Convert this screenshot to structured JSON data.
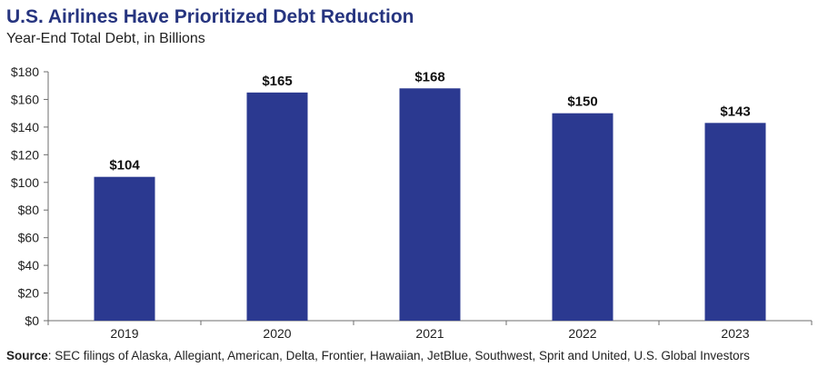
{
  "header": {
    "title": "U.S. Airlines Have Prioritized Debt Reduction",
    "subtitle": "Year-End Total Debt, in Billions"
  },
  "source": {
    "label": "Source",
    "text": ": SEC filings of Alaska, Allegiant, American, Delta, Frontier, Hawaiian, JetBlue, Southwest, Sprit and United, U.S. Global Investors"
  },
  "colors": {
    "bar": "#2b3990",
    "title": "#26347f"
  },
  "chart_data": {
    "type": "bar",
    "title": "U.S. Airlines Have Prioritized Debt Reduction",
    "subtitle": "Year-End Total Debt, in Billions",
    "xlabel": "",
    "ylabel": "",
    "categories": [
      "2019",
      "2020",
      "2021",
      "2022",
      "2023"
    ],
    "values": [
      104,
      165,
      168,
      150,
      143
    ],
    "data_labels": [
      "$104",
      "$165",
      "$168",
      "$150",
      "$143"
    ],
    "ylim": [
      0,
      180
    ],
    "yticks": [
      0,
      20,
      40,
      60,
      80,
      100,
      120,
      140,
      160,
      180
    ],
    "ytick_labels": [
      "$0",
      "$20",
      "$40",
      "$60",
      "$80",
      "$100",
      "$120",
      "$140",
      "$160",
      "$180"
    ],
    "grid": false,
    "legend": "none"
  }
}
